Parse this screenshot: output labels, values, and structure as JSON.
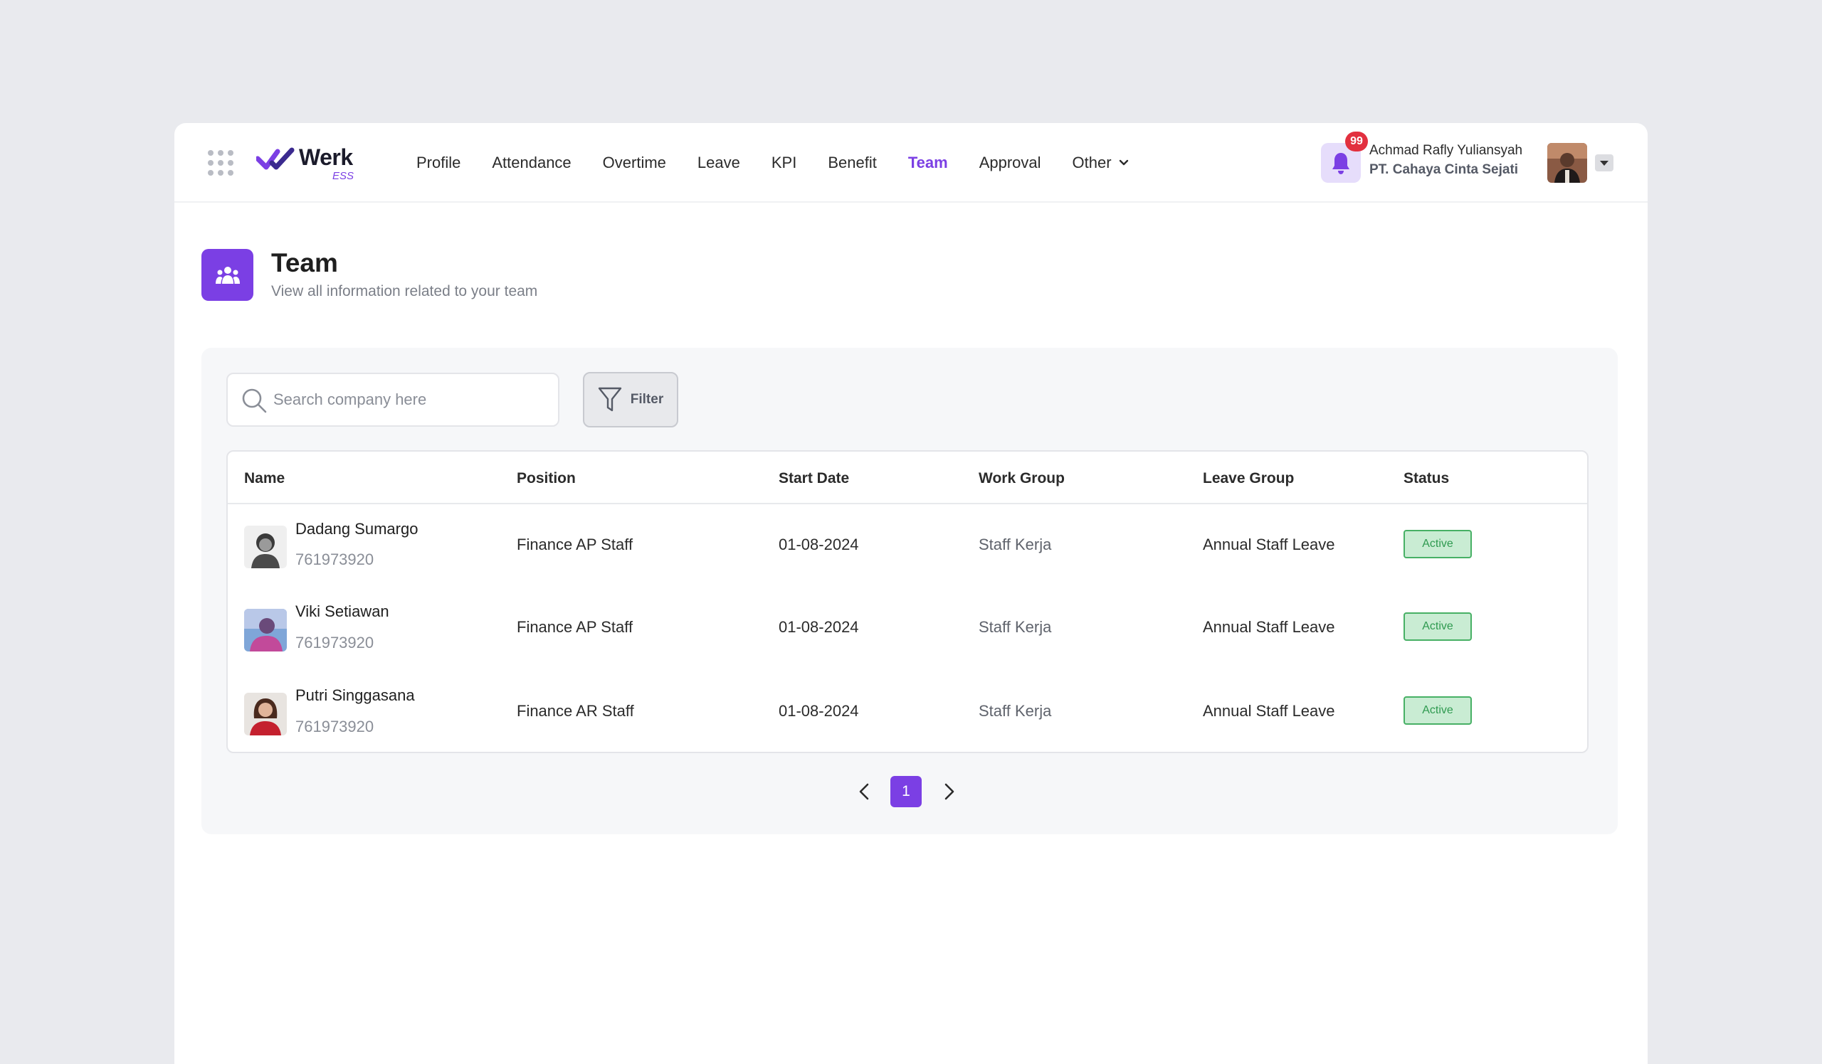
{
  "brand": {
    "name": "Werk",
    "suffix": "ESS",
    "accent": "#7b3fe4"
  },
  "nav": {
    "items": [
      {
        "label": "Profile",
        "active": false
      },
      {
        "label": "Attendance",
        "active": false
      },
      {
        "label": "Overtime",
        "active": false
      },
      {
        "label": "Leave",
        "active": false
      },
      {
        "label": "KPI",
        "active": false
      },
      {
        "label": "Benefit",
        "active": false
      },
      {
        "label": "Team",
        "active": true
      },
      {
        "label": "Approval",
        "active": false
      },
      {
        "label": "Other",
        "active": false,
        "dropdown": true
      }
    ]
  },
  "user": {
    "notification_count": "99",
    "name": "Achmad Rafly Yuliansyah",
    "company": "PT. Cahaya Cinta Sejati"
  },
  "page": {
    "title": "Team",
    "subtitle": "View all information related to your team"
  },
  "search": {
    "placeholder": "Search company here",
    "value": ""
  },
  "filter": {
    "label": "Filter"
  },
  "table": {
    "headers": [
      "Name",
      "Position",
      "Start Date",
      "Work Group",
      "Leave Group",
      "Status"
    ],
    "rows": [
      {
        "name": "Dadang Sumargo",
        "id": "761973920",
        "position": "Finance AP Staff",
        "start_date": "01-08-2024",
        "work_group": "Staff Kerja",
        "leave_group": "Annual Staff Leave",
        "status": "Active"
      },
      {
        "name": "Viki Setiawan",
        "id": "761973920",
        "position": "Finance AP Staff",
        "start_date": "01-08-2024",
        "work_group": "Staff Kerja",
        "leave_group": "Annual Staff Leave",
        "status": "Active"
      },
      {
        "name": "Putri Singgasana",
        "id": "761973920",
        "position": "Finance AR Staff",
        "start_date": "01-08-2024",
        "work_group": "Staff Kerja",
        "leave_group": "Annual Staff Leave",
        "status": "Active"
      }
    ]
  },
  "pagination": {
    "current": "1"
  }
}
